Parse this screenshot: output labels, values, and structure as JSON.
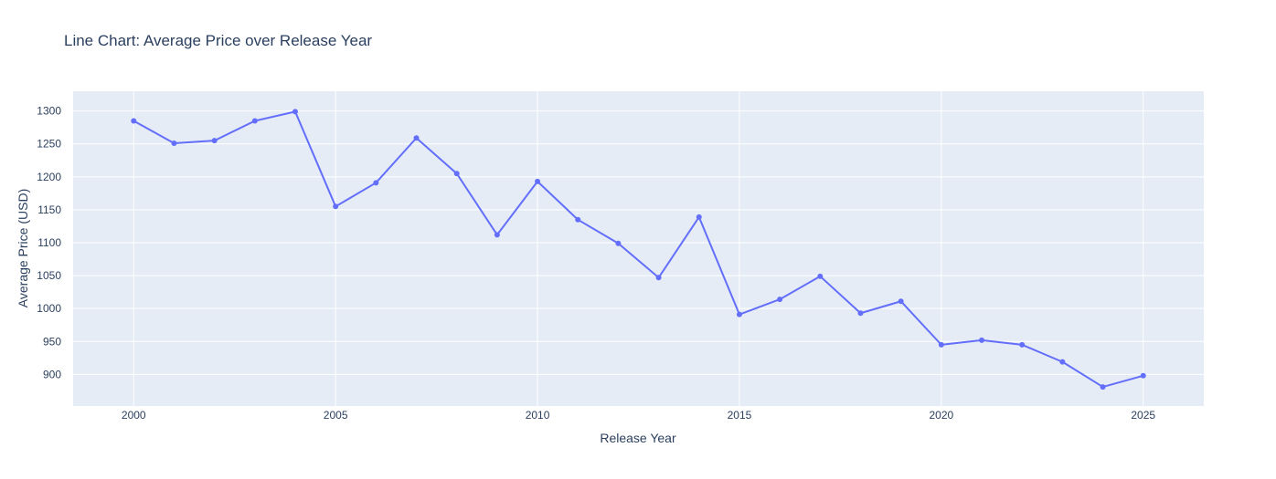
{
  "chart_data": {
    "type": "line",
    "title": "Line Chart: Average Price over Release Year",
    "xlabel": "Release Year",
    "ylabel": "Average Price (USD)",
    "xlim": [
      1998.5,
      2026.5
    ],
    "ylim": [
      852,
      1330
    ],
    "x_ticks": [
      2000,
      2005,
      2010,
      2015,
      2020,
      2025
    ],
    "y_ticks": [
      900,
      950,
      1000,
      1050,
      1100,
      1150,
      1200,
      1250,
      1300
    ],
    "grid": true,
    "legend": false,
    "colors": {
      "line": "#636efa",
      "plot_bg": "#e5ecf6",
      "grid": "#ffffff",
      "text": "#2a3f5f"
    },
    "series": [
      {
        "x": [
          2000,
          2001,
          2002,
          2003,
          2004,
          2005,
          2006,
          2007,
          2008,
          2009,
          2010,
          2011,
          2012,
          2013,
          2014,
          2015,
          2016,
          2017,
          2018,
          2019,
          2020,
          2021,
          2022,
          2023,
          2024,
          2025
        ],
        "values": [
          1285,
          1251,
          1255,
          1285,
          1299,
          1155,
          1191,
          1259,
          1205,
          1112,
          1193,
          1135,
          1099,
          1047,
          1139,
          991,
          1014,
          1049,
          993,
          1011,
          945,
          952,
          945,
          919,
          881,
          898
        ]
      }
    ]
  }
}
